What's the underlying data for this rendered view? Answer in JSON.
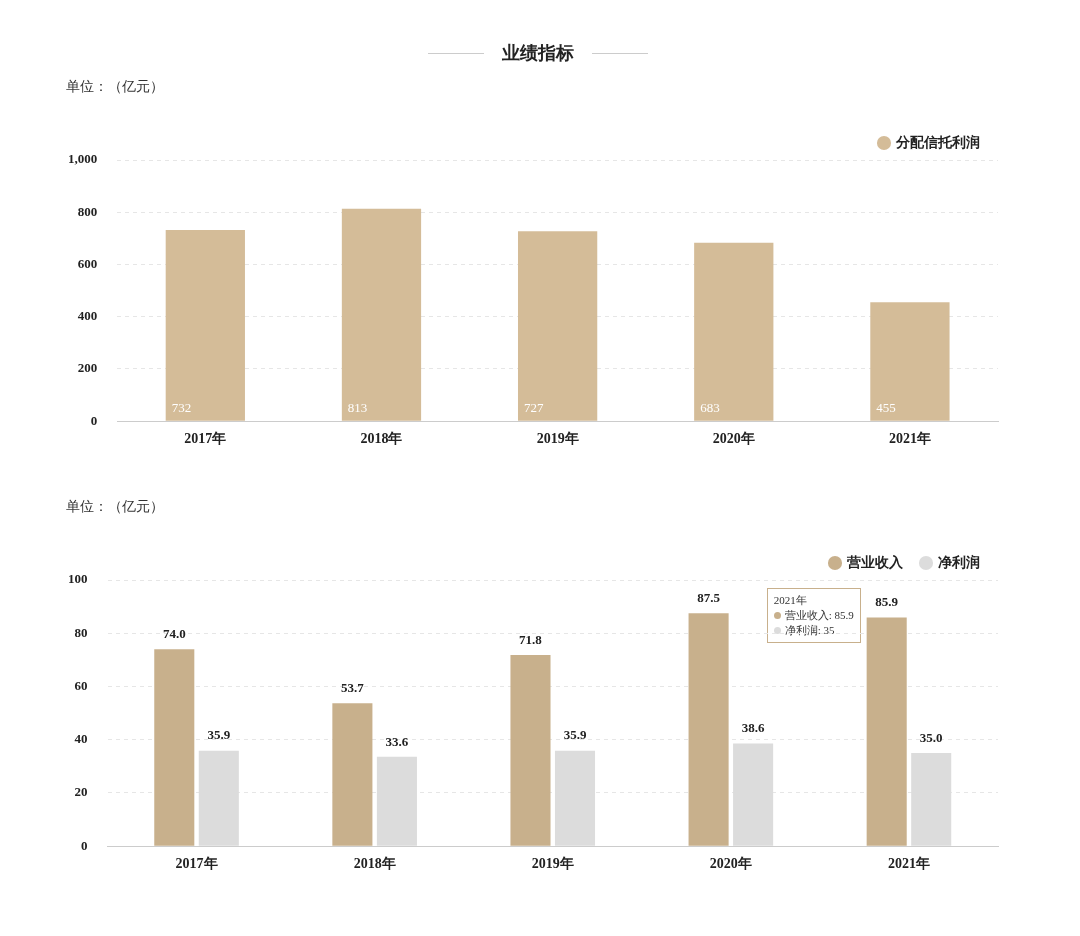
{
  "chart_data": [
    {
      "type": "bar",
      "title": "业绩指标",
      "ylabel": "单位：（亿元）",
      "categories": [
        "2017年",
        "2018年",
        "2019年",
        "2020年",
        "2021年"
      ],
      "series": [
        {
          "name": "分配信托利润",
          "color": "#d4bc98",
          "values": [
            732,
            813,
            727,
            683,
            455
          ]
        }
      ],
      "ylim": [
        0,
        1000
      ],
      "yticks": [
        0,
        200,
        400,
        600,
        800,
        {
          "value": 1000,
          "label": "1,000"
        }
      ],
      "grid": "y",
      "legend": "top right",
      "data_labels": true
    },
    {
      "type": "bar",
      "ylabel": "单位：（亿元）",
      "categories": [
        "2017年",
        "2018年",
        "2019年",
        "2020年",
        "2021年"
      ],
      "series": [
        {
          "name": "营业收入",
          "color": "#c8b08c",
          "values": [
            74.0,
            53.7,
            71.8,
            87.5,
            85.9
          ],
          "value_labels": [
            "74.0",
            "53.7",
            "71.8",
            "87.5",
            "85.9"
          ]
        },
        {
          "name": "净利润",
          "color": "#dcdcdc",
          "values": [
            35.9,
            33.6,
            35.9,
            38.6,
            35.0
          ],
          "value_labels": [
            "35.9",
            "33.6",
            "35.9",
            "38.6",
            "35.0"
          ]
        }
      ],
      "ylim": [
        0,
        100
      ],
      "yticks": [
        0,
        20,
        40,
        60,
        80,
        100
      ],
      "grid": "y",
      "legend": "top right",
      "annotations": [
        "2021年",
        "营业收入: 85.9",
        "净利润: 35"
      ]
    }
  ]
}
